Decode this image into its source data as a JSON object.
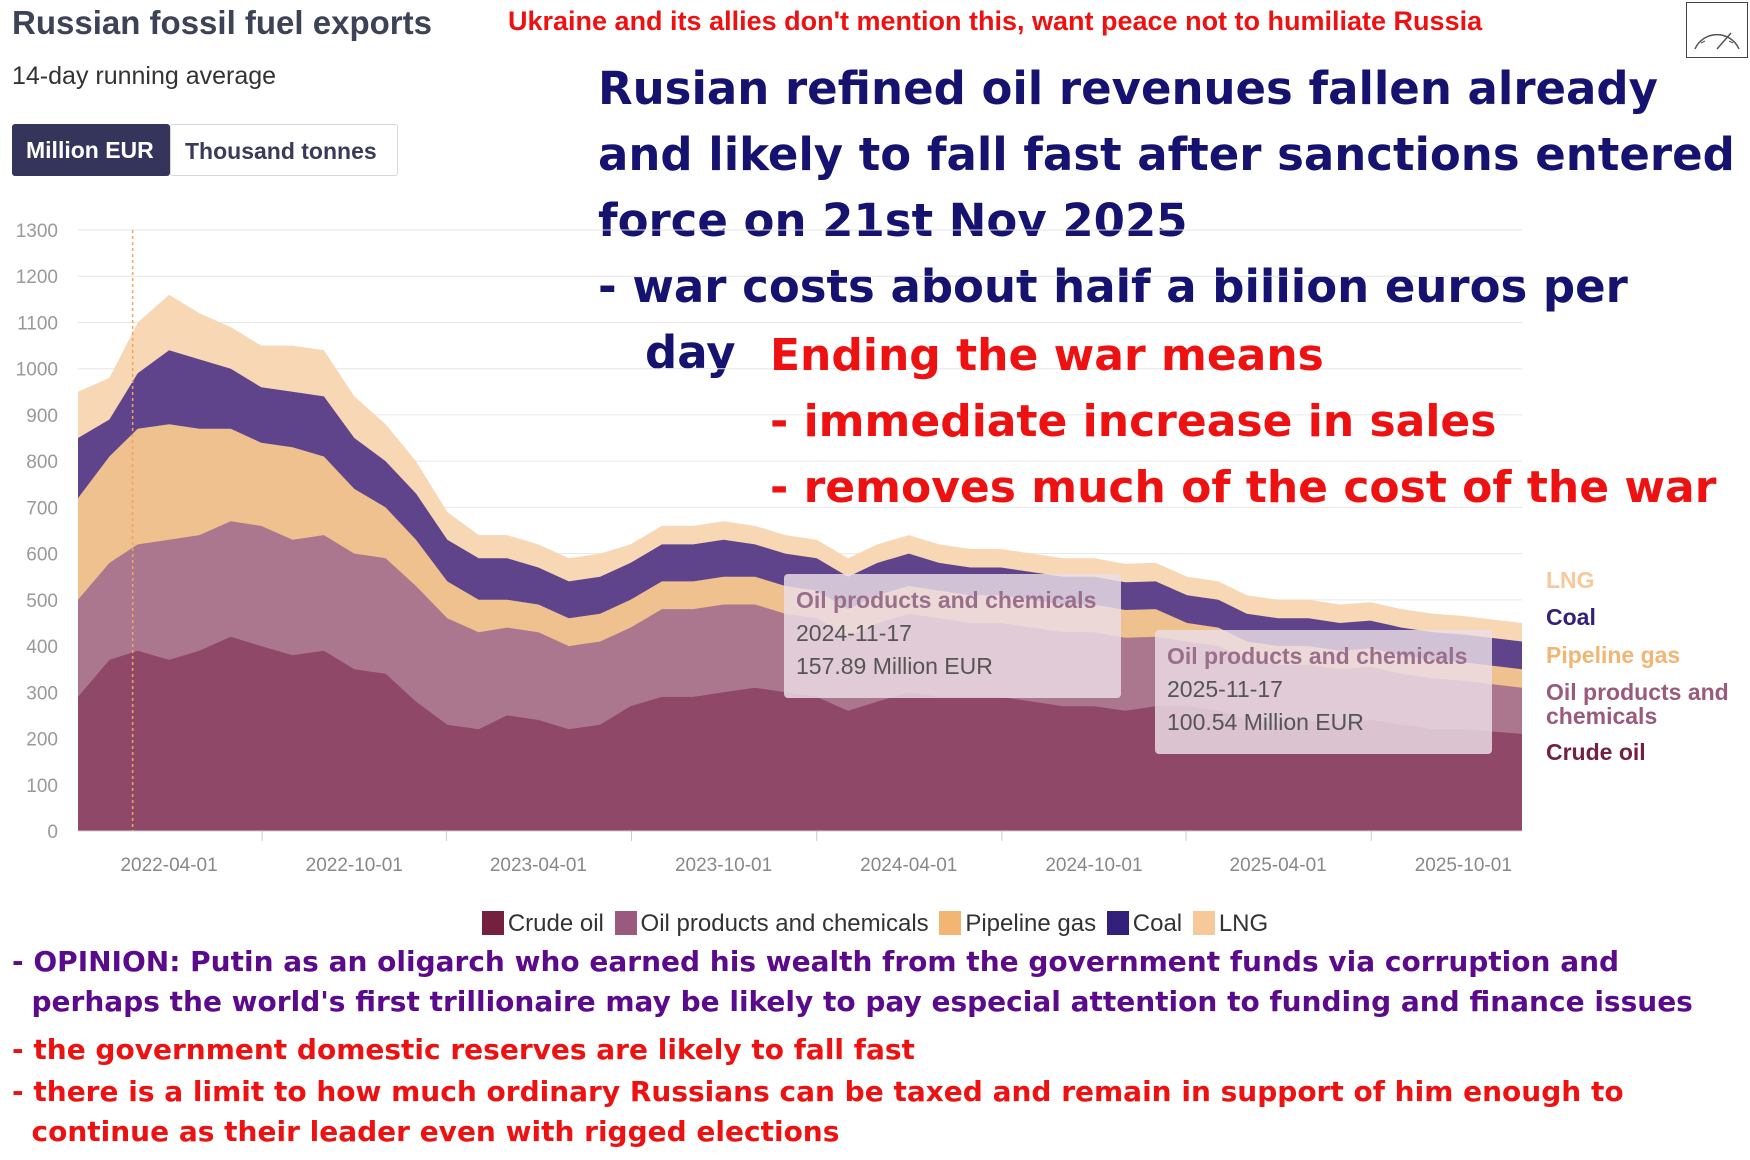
{
  "header": {
    "title": "Russian fossil fuel exports",
    "subtitle": "14-day running average",
    "unit_toggle": {
      "selected": "Million EUR",
      "options": [
        "Million EUR",
        "Thousand tonnes"
      ]
    }
  },
  "annotations": {
    "top_note": "Ukraine and its allies don't mention this, want peace not to humiliate Russia",
    "revenue_lines": [
      "Rusian refined oil revenues fallen already",
      "and likely to fall fast after sanctions entered",
      "force on 21st Nov 2025",
      "- war costs about half a billion euros per",
      "   day"
    ],
    "ending_lines": [
      "Ending the war means",
      "- immediate increase in sales",
      "- removes much of the cost of the war"
    ],
    "opinion_lines": [
      "- OPINION: Putin as an oligarch who earned his wealth from the government funds via corruption and",
      "  perhaps the world's first trillionaire may be likely to pay especial attention to funding and finance issues"
    ],
    "reserves_line": "- the government domestic reserves are likely to fall fast",
    "tax_lines": [
      "- there is a limit to how much ordinary Russians can be taxed and remain in support of him enough to",
      "  continue as their leader even with rigged elections"
    ]
  },
  "tooltips": [
    {
      "title": "Oil products and chemicals",
      "date": "2024-11-17",
      "value": "157.89 Million EUR"
    },
    {
      "title": "Oil products and chemicals",
      "date": "2025-11-17",
      "value": "100.54 Million EUR"
    }
  ],
  "colors": {
    "crude_oil": "#8e4666",
    "oil_products": "#a8758e",
    "pipeline_gas": "#f3c58f",
    "coal": "#5a3f8a",
    "lng": "#f8d6b3",
    "crude_legend": "#74203f",
    "oil_products_legend": "#9a5a7e",
    "pipeline_legend": "#f2b573",
    "coal_legend": "#33207a",
    "lng_legend": "#f6c89a"
  },
  "chart_data": {
    "type": "area",
    "stacked": true,
    "ylim": [
      0,
      1300
    ],
    "yticks": [
      0,
      100,
      200,
      300,
      400,
      500,
      600,
      700,
      800,
      900,
      1000,
      1100,
      1200,
      1300
    ],
    "xlim": [
      "2022-01-01",
      "2025-11-28"
    ],
    "xtick_labels": [
      "2022-04-01",
      "2022-10-01",
      "2023-04-01",
      "2023-10-01",
      "2024-04-01",
      "2024-10-01",
      "2025-04-01",
      "2025-10-01"
    ],
    "marker_date": "2022-02-24",
    "grid": true,
    "legend_bottom": [
      "Crude oil",
      "Oil products and chemicals",
      "Pipeline gas",
      "Coal",
      "LNG"
    ],
    "legend_right": [
      "LNG",
      "Coal",
      "Pipeline gas",
      "Oil products and chemicals",
      "Crude oil"
    ],
    "series": [
      {
        "name": "Crude oil",
        "points": [
          [
            "2022-01-01",
            290
          ],
          [
            "2022-02-01",
            370
          ],
          [
            "2022-03-01",
            390
          ],
          [
            "2022-04-01",
            370
          ],
          [
            "2022-05-01",
            390
          ],
          [
            "2022-06-01",
            420
          ],
          [
            "2022-07-01",
            400
          ],
          [
            "2022-08-01",
            380
          ],
          [
            "2022-09-01",
            390
          ],
          [
            "2022-10-01",
            350
          ],
          [
            "2022-11-01",
            340
          ],
          [
            "2022-12-01",
            280
          ],
          [
            "2023-01-01",
            230
          ],
          [
            "2023-02-01",
            220
          ],
          [
            "2023-03-01",
            250
          ],
          [
            "2023-04-01",
            240
          ],
          [
            "2023-05-01",
            220
          ],
          [
            "2023-06-01",
            230
          ],
          [
            "2023-07-01",
            270
          ],
          [
            "2023-08-01",
            290
          ],
          [
            "2023-09-01",
            290
          ],
          [
            "2023-10-01",
            300
          ],
          [
            "2023-11-01",
            310
          ],
          [
            "2023-12-01",
            300
          ],
          [
            "2024-01-01",
            290
          ],
          [
            "2024-02-01",
            260
          ],
          [
            "2024-03-01",
            280
          ],
          [
            "2024-04-01",
            300
          ],
          [
            "2024-05-01",
            290
          ],
          [
            "2024-06-01",
            290
          ],
          [
            "2024-07-01",
            290
          ],
          [
            "2024-08-01",
            280
          ],
          [
            "2024-09-01",
            270
          ],
          [
            "2024-10-01",
            270
          ],
          [
            "2024-11-01",
            260
          ],
          [
            "2024-12-01",
            270
          ],
          [
            "2025-01-01",
            270
          ],
          [
            "2025-02-01",
            260
          ],
          [
            "2025-03-01",
            240
          ],
          [
            "2025-04-01",
            230
          ],
          [
            "2025-05-01",
            240
          ],
          [
            "2025-06-01",
            230
          ],
          [
            "2025-07-01",
            240
          ],
          [
            "2025-08-01",
            230
          ],
          [
            "2025-09-01",
            220
          ],
          [
            "2025-10-01",
            220
          ],
          [
            "2025-11-28",
            210
          ]
        ]
      },
      {
        "name": "Oil products and chemicals",
        "points": [
          [
            "2022-01-01",
            210
          ],
          [
            "2022-02-01",
            210
          ],
          [
            "2022-03-01",
            230
          ],
          [
            "2022-04-01",
            260
          ],
          [
            "2022-05-01",
            250
          ],
          [
            "2022-06-01",
            250
          ],
          [
            "2022-07-01",
            260
          ],
          [
            "2022-08-01",
            250
          ],
          [
            "2022-09-01",
            250
          ],
          [
            "2022-10-01",
            250
          ],
          [
            "2022-11-01",
            250
          ],
          [
            "2022-12-01",
            250
          ],
          [
            "2023-01-01",
            230
          ],
          [
            "2023-02-01",
            210
          ],
          [
            "2023-03-01",
            190
          ],
          [
            "2023-04-01",
            190
          ],
          [
            "2023-05-01",
            180
          ],
          [
            "2023-06-01",
            180
          ],
          [
            "2023-07-01",
            170
          ],
          [
            "2023-08-01",
            190
          ],
          [
            "2023-09-01",
            190
          ],
          [
            "2023-10-01",
            190
          ],
          [
            "2023-11-01",
            180
          ],
          [
            "2023-12-01",
            170
          ],
          [
            "2024-01-01",
            170
          ],
          [
            "2024-02-01",
            160
          ],
          [
            "2024-03-01",
            170
          ],
          [
            "2024-04-01",
            170
          ],
          [
            "2024-05-01",
            170
          ],
          [
            "2024-06-01",
            160
          ],
          [
            "2024-07-01",
            160
          ],
          [
            "2024-08-01",
            160
          ],
          [
            "2024-09-01",
            160
          ],
          [
            "2024-10-01",
            160
          ],
          [
            "2024-11-01",
            158
          ],
          [
            "2024-12-01",
            150
          ],
          [
            "2025-01-01",
            140
          ],
          [
            "2025-02-01",
            140
          ],
          [
            "2025-03-01",
            130
          ],
          [
            "2025-04-01",
            130
          ],
          [
            "2025-05-01",
            120
          ],
          [
            "2025-06-01",
            120
          ],
          [
            "2025-07-01",
            115
          ],
          [
            "2025-08-01",
            110
          ],
          [
            "2025-09-01",
            110
          ],
          [
            "2025-10-01",
            105
          ],
          [
            "2025-11-28",
            100
          ]
        ]
      },
      {
        "name": "Pipeline gas",
        "points": [
          [
            "2022-01-01",
            220
          ],
          [
            "2022-02-01",
            230
          ],
          [
            "2022-03-01",
            250
          ],
          [
            "2022-04-01",
            250
          ],
          [
            "2022-05-01",
            230
          ],
          [
            "2022-06-01",
            200
          ],
          [
            "2022-07-01",
            180
          ],
          [
            "2022-08-01",
            200
          ],
          [
            "2022-09-01",
            170
          ],
          [
            "2022-10-01",
            140
          ],
          [
            "2022-11-01",
            110
          ],
          [
            "2022-12-01",
            100
          ],
          [
            "2023-01-01",
            80
          ],
          [
            "2023-02-01",
            70
          ],
          [
            "2023-03-01",
            60
          ],
          [
            "2023-04-01",
            60
          ],
          [
            "2023-05-01",
            60
          ],
          [
            "2023-06-01",
            60
          ],
          [
            "2023-07-01",
            60
          ],
          [
            "2023-08-01",
            60
          ],
          [
            "2023-09-01",
            60
          ],
          [
            "2023-10-01",
            60
          ],
          [
            "2023-11-01",
            60
          ],
          [
            "2023-12-01",
            60
          ],
          [
            "2024-01-01",
            60
          ],
          [
            "2024-02-01",
            60
          ],
          [
            "2024-03-01",
            60
          ],
          [
            "2024-04-01",
            60
          ],
          [
            "2024-05-01",
            60
          ],
          [
            "2024-06-01",
            60
          ],
          [
            "2024-07-01",
            60
          ],
          [
            "2024-08-01",
            60
          ],
          [
            "2024-09-01",
            60
          ],
          [
            "2024-10-01",
            60
          ],
          [
            "2024-11-01",
            60
          ],
          [
            "2024-12-01",
            60
          ],
          [
            "2025-01-01",
            40
          ],
          [
            "2025-02-01",
            40
          ],
          [
            "2025-03-01",
            40
          ],
          [
            "2025-04-01",
            40
          ],
          [
            "2025-05-01",
            40
          ],
          [
            "2025-06-01",
            40
          ],
          [
            "2025-07-01",
            40
          ],
          [
            "2025-08-01",
            40
          ],
          [
            "2025-09-01",
            40
          ],
          [
            "2025-10-01",
            40
          ],
          [
            "2025-11-28",
            40
          ]
        ]
      },
      {
        "name": "Coal",
        "points": [
          [
            "2022-01-01",
            130
          ],
          [
            "2022-02-01",
            80
          ],
          [
            "2022-03-01",
            120
          ],
          [
            "2022-04-01",
            160
          ],
          [
            "2022-05-01",
            150
          ],
          [
            "2022-06-01",
            130
          ],
          [
            "2022-07-01",
            120
          ],
          [
            "2022-08-01",
            120
          ],
          [
            "2022-09-01",
            130
          ],
          [
            "2022-10-01",
            110
          ],
          [
            "2022-11-01",
            100
          ],
          [
            "2022-12-01",
            100
          ],
          [
            "2023-01-01",
            90
          ],
          [
            "2023-02-01",
            90
          ],
          [
            "2023-03-01",
            90
          ],
          [
            "2023-04-01",
            80
          ],
          [
            "2023-05-01",
            80
          ],
          [
            "2023-06-01",
            80
          ],
          [
            "2023-07-01",
            80
          ],
          [
            "2023-08-01",
            80
          ],
          [
            "2023-09-01",
            80
          ],
          [
            "2023-10-01",
            80
          ],
          [
            "2023-11-01",
            70
          ],
          [
            "2023-12-01",
            70
          ],
          [
            "2024-01-01",
            70
          ],
          [
            "2024-02-01",
            70
          ],
          [
            "2024-03-01",
            70
          ],
          [
            "2024-04-01",
            70
          ],
          [
            "2024-05-01",
            60
          ],
          [
            "2024-06-01",
            60
          ],
          [
            "2024-07-01",
            60
          ],
          [
            "2024-08-01",
            60
          ],
          [
            "2024-09-01",
            60
          ],
          [
            "2024-10-01",
            60
          ],
          [
            "2024-11-01",
            60
          ],
          [
            "2024-12-01",
            60
          ],
          [
            "2025-01-01",
            60
          ],
          [
            "2025-02-01",
            60
          ],
          [
            "2025-03-01",
            60
          ],
          [
            "2025-04-01",
            60
          ],
          [
            "2025-05-01",
            60
          ],
          [
            "2025-06-01",
            60
          ],
          [
            "2025-07-01",
            60
          ],
          [
            "2025-08-01",
            60
          ],
          [
            "2025-09-01",
            60
          ],
          [
            "2025-10-01",
            60
          ],
          [
            "2025-11-28",
            60
          ]
        ]
      },
      {
        "name": "LNG",
        "points": [
          [
            "2022-01-01",
            100
          ],
          [
            "2022-02-01",
            90
          ],
          [
            "2022-03-01",
            110
          ],
          [
            "2022-04-01",
            120
          ],
          [
            "2022-05-01",
            100
          ],
          [
            "2022-06-01",
            90
          ],
          [
            "2022-07-01",
            90
          ],
          [
            "2022-08-01",
            100
          ],
          [
            "2022-09-01",
            100
          ],
          [
            "2022-10-01",
            90
          ],
          [
            "2022-11-01",
            80
          ],
          [
            "2022-12-01",
            70
          ],
          [
            "2023-01-01",
            60
          ],
          [
            "2023-02-01",
            50
          ],
          [
            "2023-03-01",
            50
          ],
          [
            "2023-04-01",
            50
          ],
          [
            "2023-05-01",
            50
          ],
          [
            "2023-06-01",
            50
          ],
          [
            "2023-07-01",
            40
          ],
          [
            "2023-08-01",
            40
          ],
          [
            "2023-09-01",
            40
          ],
          [
            "2023-10-01",
            40
          ],
          [
            "2023-11-01",
            40
          ],
          [
            "2023-12-01",
            40
          ],
          [
            "2024-01-01",
            40
          ],
          [
            "2024-02-01",
            40
          ],
          [
            "2024-03-01",
            40
          ],
          [
            "2024-04-01",
            40
          ],
          [
            "2024-05-01",
            40
          ],
          [
            "2024-06-01",
            40
          ],
          [
            "2024-07-01",
            40
          ],
          [
            "2024-08-01",
            40
          ],
          [
            "2024-09-01",
            40
          ],
          [
            "2024-10-01",
            40
          ],
          [
            "2024-11-01",
            40
          ],
          [
            "2024-12-01",
            40
          ],
          [
            "2025-01-01",
            40
          ],
          [
            "2025-02-01",
            40
          ],
          [
            "2025-03-01",
            40
          ],
          [
            "2025-04-01",
            40
          ],
          [
            "2025-05-01",
            40
          ],
          [
            "2025-06-01",
            40
          ],
          [
            "2025-07-01",
            40
          ],
          [
            "2025-08-01",
            40
          ],
          [
            "2025-09-01",
            40
          ],
          [
            "2025-10-01",
            40
          ],
          [
            "2025-11-28",
            40
          ]
        ]
      }
    ]
  }
}
